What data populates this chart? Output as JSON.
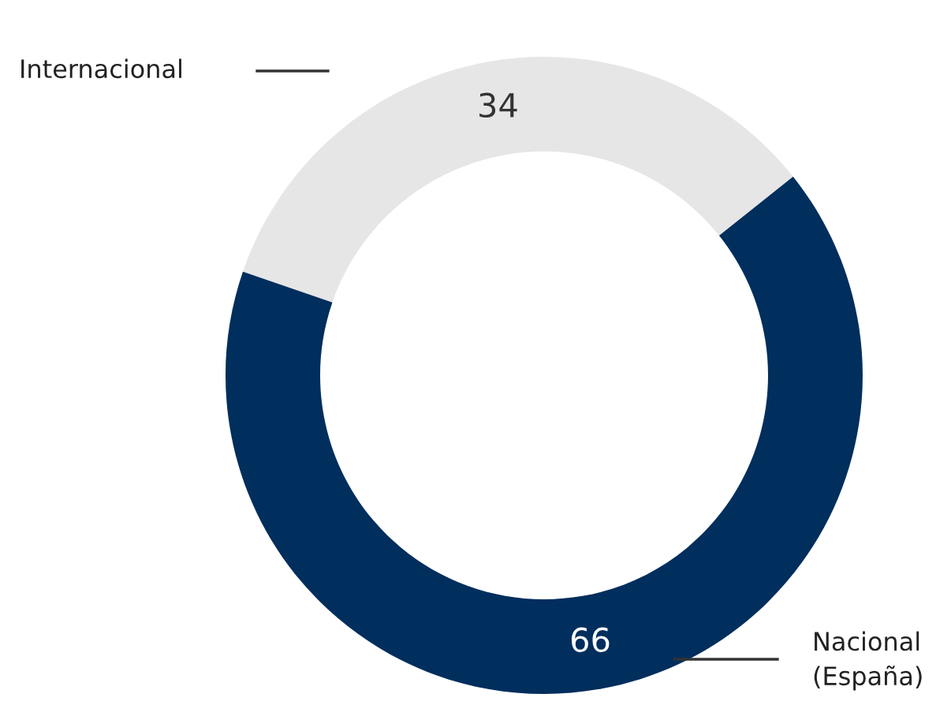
{
  "chart_data": {
    "type": "donut",
    "categories": [
      "Internacional",
      "Nacional\n(España)"
    ],
    "values": [
      34,
      66
    ],
    "colors": [
      "#e6e6e6",
      "#002e5d"
    ],
    "data_labels": true
  }
}
